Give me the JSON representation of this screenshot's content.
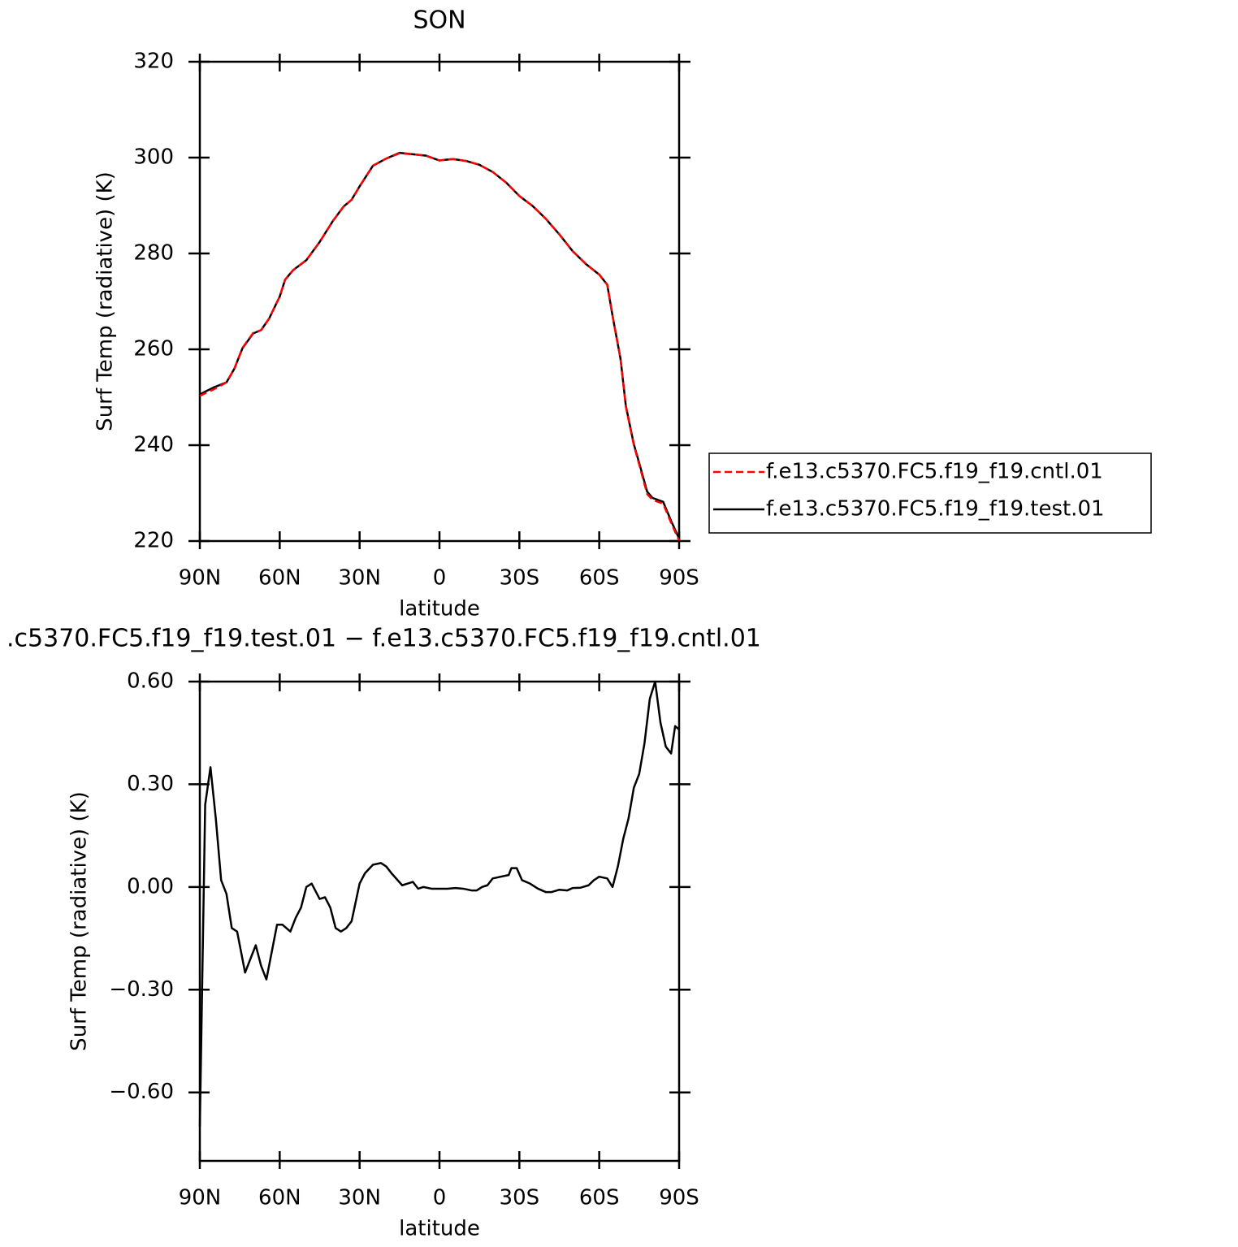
{
  "chart_data": [
    {
      "type": "line",
      "title": "SON",
      "xlabel": "latitude",
      "ylabel": "Surf Temp (radiative) (K)",
      "x": [
        90,
        85,
        80,
        77,
        74,
        70,
        67,
        64,
        60,
        58,
        55,
        50,
        45,
        40,
        36,
        33,
        30,
        25,
        20,
        15,
        10,
        5,
        0,
        -5,
        -10,
        -15,
        -20,
        -25,
        -30,
        -35,
        -40,
        -45,
        -50,
        -55,
        -60,
        -63,
        -65,
        -68,
        -70,
        -73,
        -75,
        -78,
        -80,
        -84,
        -87,
        -90
      ],
      "series": [
        {
          "name": "f.e13.c5370.FC5.f19_f19.cntl.01",
          "color": "#ff0000",
          "style": "dashed",
          "values": [
            250.3,
            251.6,
            253.1,
            256,
            260.3,
            263.4,
            264,
            266.4,
            271,
            274.5,
            276.5,
            278.6,
            282.4,
            286.8,
            289.8,
            291.2,
            294,
            298.3,
            299.8,
            300.9,
            300.7,
            300.4,
            299.4,
            299.7,
            299.3,
            298.5,
            297,
            294.8,
            292,
            289.9,
            287.2,
            284,
            280.5,
            277.8,
            275.6,
            273.5,
            267,
            258,
            248,
            240,
            236,
            229.8,
            228.6,
            227.8,
            223.8,
            220.1
          ]
        },
        {
          "name": "f.e13.c5370.FC5.f19_f19.test.01",
          "color": "#000000",
          "style": "solid",
          "values": [
            250.6,
            252,
            253.1,
            256,
            260.2,
            263.3,
            264,
            266.4,
            271,
            274.5,
            276.5,
            278.6,
            282.4,
            286.8,
            289.8,
            291.2,
            294,
            298.3,
            299.8,
            301,
            300.7,
            300.4,
            299.4,
            299.7,
            299.3,
            298.5,
            297,
            294.8,
            292,
            289.9,
            287.2,
            284,
            280.5,
            277.8,
            275.6,
            273.5,
            267,
            258,
            248.2,
            240.2,
            236.3,
            230.3,
            229,
            228.2,
            224.2,
            220.5
          ]
        }
      ],
      "xlim": [
        90,
        -90
      ],
      "xticks": [
        {
          "value": 90,
          "label": "90N"
        },
        {
          "value": 60,
          "label": "60N"
        },
        {
          "value": 30,
          "label": "30N"
        },
        0,
        {
          "value": -30,
          "label": "30S"
        },
        {
          "value": -60,
          "label": "60S"
        },
        {
          "value": -90,
          "label": "90S"
        }
      ],
      "ylim": [
        220,
        320
      ],
      "yticks": [
        220,
        240,
        260,
        280,
        300,
        320
      ],
      "legend": "right"
    },
    {
      "type": "line",
      "title": ".c5370.FC5.f19_f19.test.01 − f.e13.c5370.FC5.f19_f19.cntl.01",
      "xlabel": "latitude",
      "ylabel": "Surf Temp (radiative) (K)",
      "x": [
        90,
        88,
        86,
        84,
        82,
        80,
        78,
        76,
        73,
        69,
        67,
        65,
        61,
        59,
        56,
        54,
        52,
        50,
        48,
        45,
        43,
        41,
        39,
        37,
        35,
        33,
        30,
        28,
        25,
        22,
        20,
        18,
        14,
        12,
        10,
        8,
        6,
        3,
        0,
        -3,
        -6,
        -9,
        -12,
        -14,
        -16,
        -18,
        -20,
        -23,
        -26,
        -27,
        -29,
        -31,
        -34,
        -37,
        -40,
        -42,
        -45,
        -48,
        -50,
        -53,
        -56,
        -58,
        -60,
        -63,
        -65,
        -67,
        -69,
        -71,
        -73,
        -75,
        -77,
        -79,
        -81,
        -83,
        -85,
        -87,
        -88.5,
        -90
      ],
      "values": [
        -0.7,
        0.24,
        0.35,
        0.2,
        0.02,
        -0.02,
        -0.12,
        -0.13,
        -0.25,
        -0.17,
        -0.23,
        -0.27,
        -0.11,
        -0.11,
        -0.13,
        -0.09,
        -0.06,
        0,
        0.01,
        -0.035,
        -0.03,
        -0.06,
        -0.12,
        -0.13,
        -0.12,
        -0.1,
        0.01,
        0.04,
        0.065,
        0.07,
        0.06,
        0.04,
        0.005,
        0.01,
        0.015,
        -0.005,
        0,
        -0.005,
        -0.005,
        -0.005,
        -0.003,
        -0.005,
        -0.01,
        -0.01,
        0,
        0.005,
        0.025,
        0.03,
        0.035,
        0.055,
        0.055,
        0.02,
        0.01,
        -0.005,
        -0.015,
        -0.015,
        -0.008,
        -0.01,
        -0.003,
        -0.002,
        0.005,
        0.02,
        0.03,
        0.025,
        0,
        0.06,
        0.14,
        0.2,
        0.29,
        0.33,
        0.42,
        0.55,
        0.6,
        0.48,
        0.41,
        0.39,
        0.47,
        0.46
      ],
      "color": "#000000",
      "style": "solid",
      "xlim": [
        90,
        -90
      ],
      "xticks": [
        {
          "value": 90,
          "label": "90N"
        },
        {
          "value": 60,
          "label": "60N"
        },
        {
          "value": 30,
          "label": "30N"
        },
        0,
        {
          "value": -30,
          "label": "30S"
        },
        {
          "value": -60,
          "label": "60S"
        },
        {
          "value": -90,
          "label": "90S"
        }
      ],
      "ylim": [
        -0.8,
        0.6
      ],
      "yticks": [
        {
          "value": -0.6,
          "label": "−0.60"
        },
        {
          "value": -0.3,
          "label": "−0.30"
        },
        {
          "value": 0,
          "label": "0.00"
        },
        {
          "value": 0.3,
          "label": "0.30"
        },
        {
          "value": 0.6,
          "label": "0.60"
        }
      ]
    }
  ]
}
